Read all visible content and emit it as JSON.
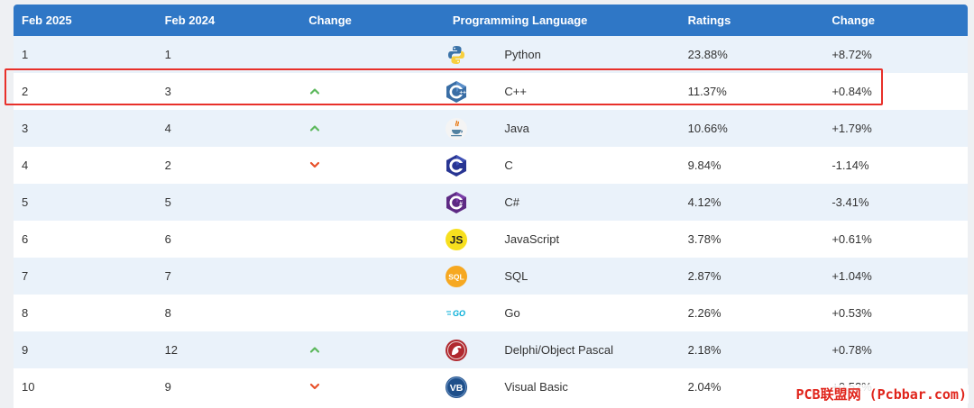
{
  "header": {
    "col_current": "Feb 2025",
    "col_previous": "Feb 2024",
    "col_change": "Change",
    "col_language": "Programming Language",
    "col_ratings": "Ratings",
    "col_change_pct": "Change"
  },
  "rows": [
    {
      "current": "1",
      "previous": "1",
      "trend": "none",
      "icon": "python-logo-icon",
      "language": "Python",
      "rating": "23.88%",
      "change": "+8.72%"
    },
    {
      "current": "2",
      "previous": "3",
      "trend": "up",
      "icon": "cpp-logo-icon",
      "language": "C++",
      "rating": "11.37%",
      "change": "+0.84%"
    },
    {
      "current": "3",
      "previous": "4",
      "trend": "up",
      "icon": "java-logo-icon",
      "language": "Java",
      "rating": "10.66%",
      "change": "+1.79%"
    },
    {
      "current": "4",
      "previous": "2",
      "trend": "down",
      "icon": "c-logo-icon",
      "language": "C",
      "rating": "9.84%",
      "change": "-1.14%"
    },
    {
      "current": "5",
      "previous": "5",
      "trend": "none",
      "icon": "csharp-logo-icon",
      "language": "C#",
      "rating": "4.12%",
      "change": "-3.41%"
    },
    {
      "current": "6",
      "previous": "6",
      "trend": "none",
      "icon": "javascript-logo-icon",
      "language": "JavaScript",
      "rating": "3.78%",
      "change": "+0.61%"
    },
    {
      "current": "7",
      "previous": "7",
      "trend": "none",
      "icon": "sql-logo-icon",
      "language": "SQL",
      "rating": "2.87%",
      "change": "+1.04%"
    },
    {
      "current": "8",
      "previous": "8",
      "trend": "none",
      "icon": "go-logo-icon",
      "language": "Go",
      "rating": "2.26%",
      "change": "+0.53%"
    },
    {
      "current": "9",
      "previous": "12",
      "trend": "up",
      "icon": "delphi-logo-icon",
      "language": "Delphi/Object Pascal",
      "rating": "2.18%",
      "change": "+0.78%"
    },
    {
      "current": "10",
      "previous": "9",
      "trend": "down",
      "icon": "visual-basic-logo-icon",
      "language": "Visual Basic",
      "rating": "2.04%",
      "change": "+0.52%"
    }
  ],
  "logo_text": {
    "js": "JS",
    "sql": "SQL",
    "go": "GO",
    "vb": "VB"
  },
  "watermark": "PCB联盟网 (Pcbbar.com)",
  "colors": {
    "header_bg": "#2f77c6",
    "row_alt_bg": "#eaf2fa",
    "trend_up": "#5cb85c",
    "trend_down": "#e8512a",
    "highlight_border": "#e8302a"
  }
}
